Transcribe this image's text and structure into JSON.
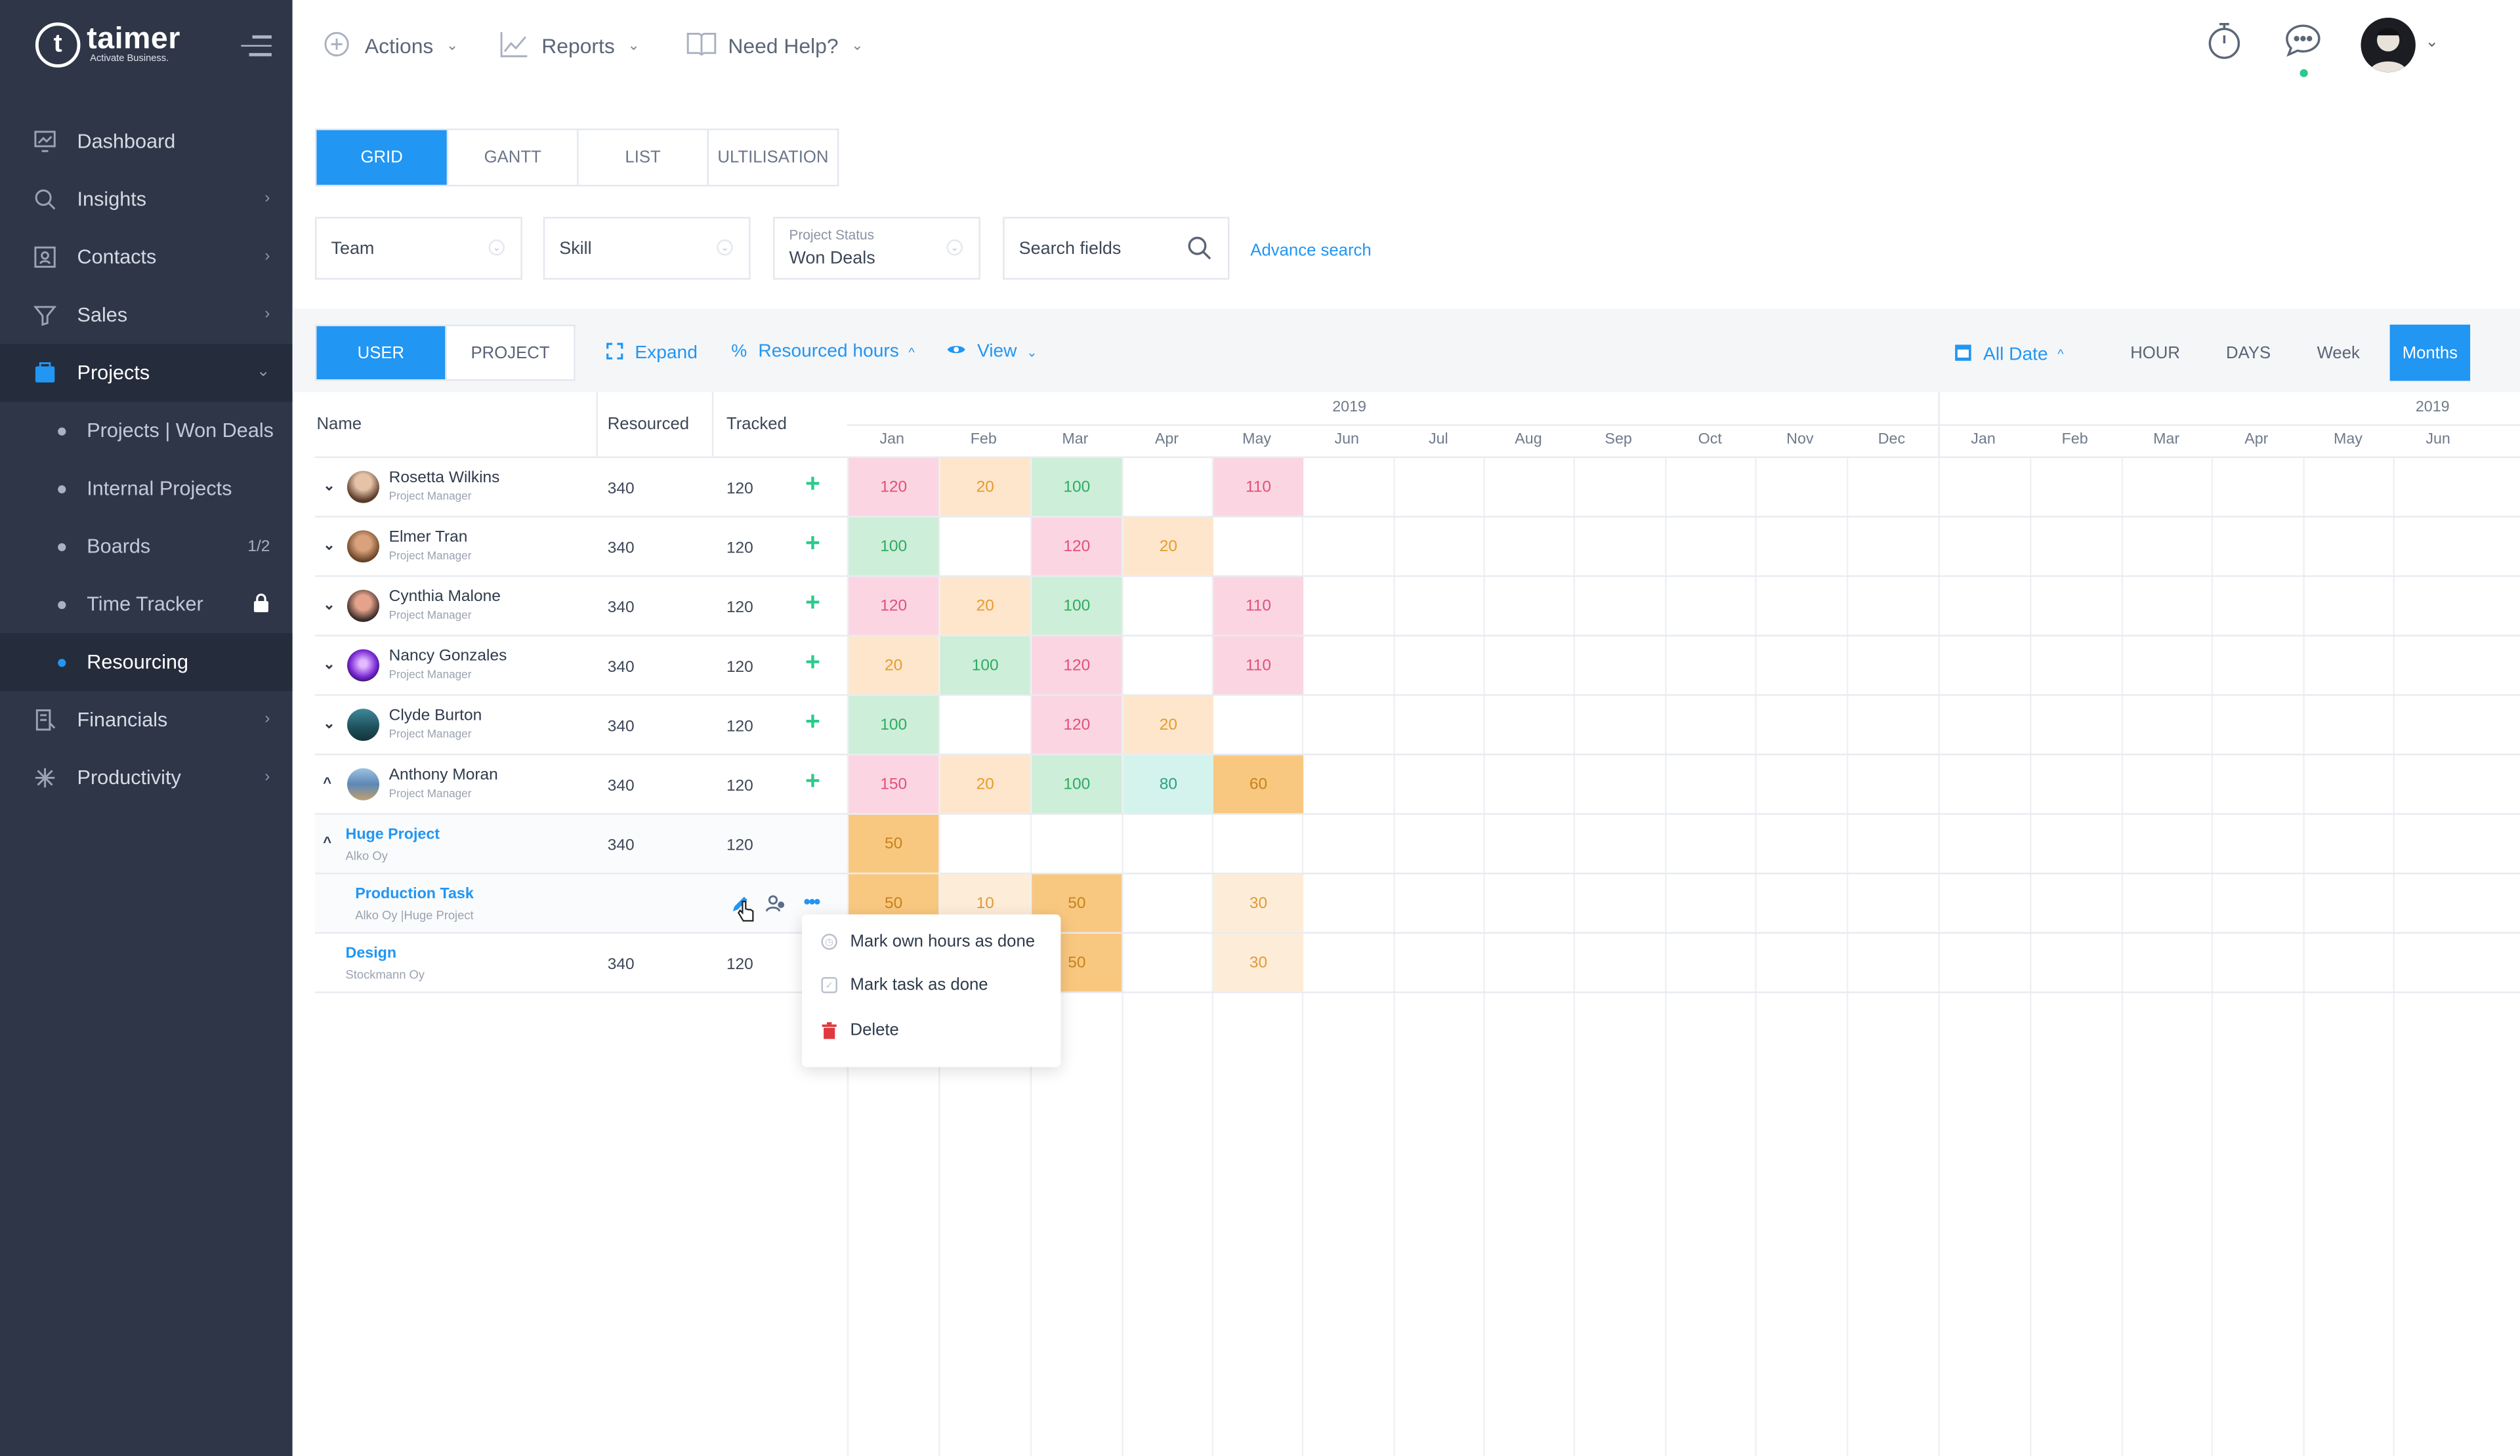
{
  "brand": {
    "name": "taimer",
    "tagline": "Activate Business."
  },
  "sidebar": {
    "items": [
      {
        "label": "Dashboard",
        "icon": "dashboard-icon"
      },
      {
        "label": "Insights",
        "icon": "insights-icon"
      },
      {
        "label": "Contacts",
        "icon": "contacts-icon"
      },
      {
        "label": "Sales",
        "icon": "filter-icon"
      },
      {
        "label": "Projects",
        "icon": "projects-icon"
      },
      {
        "label": "Financials",
        "icon": "financials-icon"
      },
      {
        "label": "Productivity",
        "icon": "productivity-icon"
      }
    ],
    "subitems": [
      {
        "label": "Projects | Won Deals"
      },
      {
        "label": "Internal Projects"
      },
      {
        "label": "Boards",
        "meta": "1/2"
      },
      {
        "label": "Time Tracker"
      },
      {
        "label": "Resourcing"
      }
    ]
  },
  "topbar": {
    "actions": "Actions",
    "reports": "Reports",
    "help": "Need Help?"
  },
  "view_tabs": [
    "GRID",
    "GANTT",
    "LIST",
    "ULTILISATION"
  ],
  "filters": {
    "team": "Team",
    "skill": "Skill",
    "status_label": "Project Status",
    "status_value": "Won Deals",
    "search_placeholder": "Search fields",
    "advance": "Advance search"
  },
  "toolbar": {
    "user": "USER",
    "project": "PROJECT",
    "expand": "Expand",
    "resourced": "Resourced hours",
    "view": "View",
    "all_date": "All Date",
    "granularity": [
      "HOUR",
      "DAYS",
      "Week",
      "Months"
    ]
  },
  "table": {
    "headers": {
      "name": "Name",
      "resourced": "Resourced",
      "tracked": "Tracked"
    },
    "rows": [
      {
        "name": "Rosetta Wilkins",
        "role": "Project Manager",
        "resourced": "340",
        "tracked": "120"
      },
      {
        "name": "Elmer Tran",
        "role": "Project Manager",
        "resourced": "340",
        "tracked": "120"
      },
      {
        "name": "Cynthia Malone",
        "role": "Project Manager",
        "resourced": "340",
        "tracked": "120"
      },
      {
        "name": "Nancy Gonzales",
        "role": "Project Manager",
        "resourced": "340",
        "tracked": "120"
      },
      {
        "name": "Clyde Burton",
        "role": "Project Manager",
        "resourced": "340",
        "tracked": "120"
      },
      {
        "name": "Anthony Moran",
        "role": "Project Manager",
        "resourced": "340",
        "tracked": "120"
      }
    ],
    "project": {
      "name": "Huge Project",
      "company": "Alko Oy",
      "resourced": "340",
      "tracked": "120"
    },
    "task": {
      "name": "Production Task",
      "company": "Alko Oy",
      "path": "Huge Project"
    },
    "design": {
      "name": "Design",
      "company": "Stockmann Oy",
      "resourced": "340",
      "tracked": "120"
    }
  },
  "timeline": {
    "year1": "2019",
    "year2": "2019",
    "months": [
      "Jan",
      "Feb",
      "Mar",
      "Apr",
      "May",
      "Jun",
      "Jul",
      "Aug",
      "Sep",
      "Oct",
      "Nov",
      "Dec",
      "Jan",
      "Feb",
      "Mar",
      "Apr",
      "May",
      "Jun"
    ]
  },
  "cells": [
    [
      "120",
      "20",
      "100",
      "",
      "110"
    ],
    [
      "100",
      "",
      "120",
      "20",
      ""
    ],
    [
      "120",
      "20",
      "100",
      "",
      "110"
    ],
    [
      "20",
      "100",
      "120",
      "",
      "110"
    ],
    [
      "100",
      "",
      "120",
      "20",
      ""
    ],
    [
      "150",
      "20",
      "100",
      "80",
      "60"
    ],
    [
      "50",
      "",
      "",
      "",
      ""
    ],
    [
      "50",
      "10",
      "50",
      "",
      "30"
    ],
    [
      "",
      "",
      "50",
      "",
      "30"
    ]
  ],
  "menu": [
    "Mark own hours as done",
    "Mark task as done",
    "Delete"
  ],
  "colors": {
    "accent": "#2196f3",
    "sidebar": "#2e3648",
    "add": "#2cc98c"
  }
}
